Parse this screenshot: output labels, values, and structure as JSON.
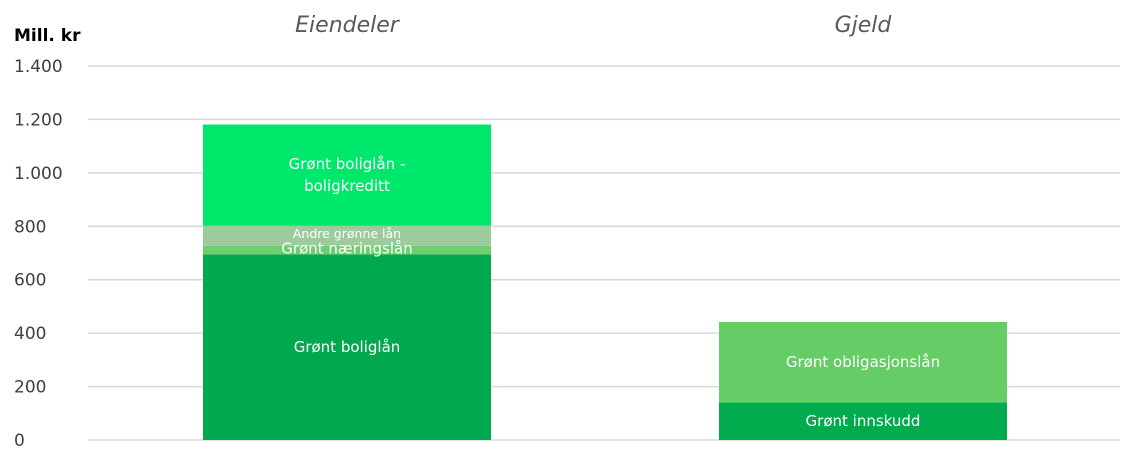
{
  "chart_data": {
    "type": "bar",
    "stacked": true,
    "ylabel": "Mill. kr",
    "ylim": [
      0,
      1400
    ],
    "yticks": [
      0,
      200,
      400,
      600,
      800,
      1000,
      1200,
      1400
    ],
    "ytick_labels": [
      "0",
      "200",
      "400",
      "600",
      "800",
      "1.000",
      "1.200",
      "1.400"
    ],
    "grid": true,
    "categories": [
      "Eiendeler",
      "Gjeld"
    ],
    "stacks": [
      {
        "category": "Eiendeler",
        "segments": [
          {
            "name": "Grønt boliglån",
            "value": 695,
            "color": "#00a94f"
          },
          {
            "name": "Grønt næringslån",
            "value": 32,
            "color": "#6ccf6c"
          },
          {
            "name": "Andre grønne lån",
            "value": 75,
            "color": "#9ccb9c"
          },
          {
            "name": "Grønt boliglån - boligkreditt",
            "value": 379,
            "color": "#00e86b"
          }
        ]
      },
      {
        "category": "Gjeld",
        "segments": [
          {
            "name": "Grønt innskudd",
            "value": 141,
            "color": "#00ab4e"
          },
          {
            "name": "Grønt obligasjonslån",
            "value": 301,
            "color": "#66cc66"
          }
        ]
      }
    ]
  }
}
